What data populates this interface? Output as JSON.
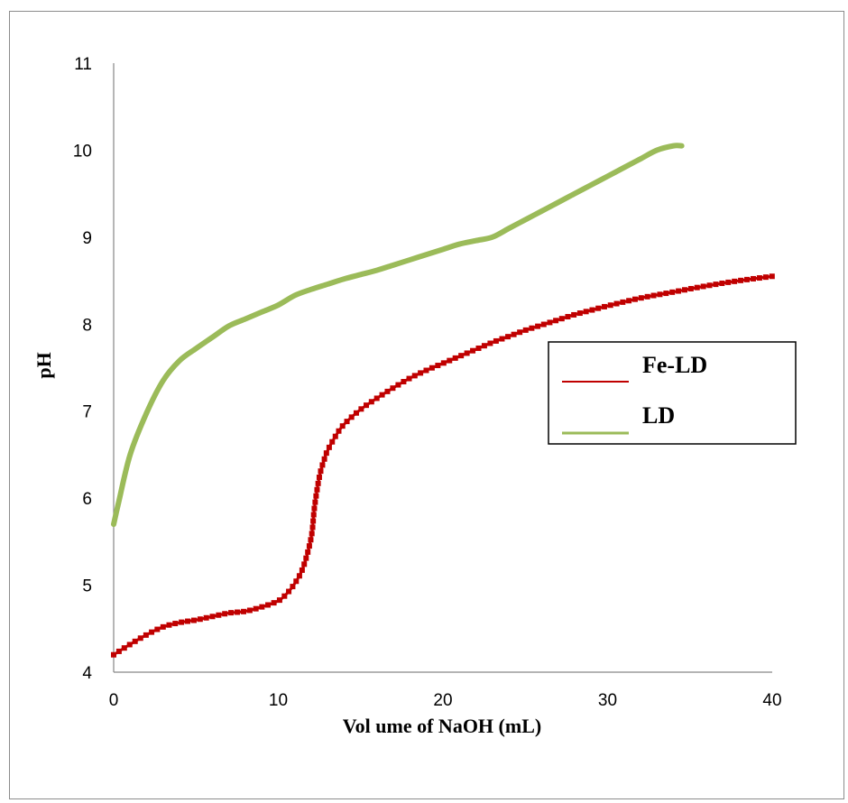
{
  "chart_data": {
    "type": "line",
    "xlabel": "Vol ume of NaOH (mL)",
    "ylabel": "pH",
    "xlim": [
      0,
      40
    ],
    "ylim": [
      4,
      11
    ],
    "xticks": [
      "0",
      "10",
      "20",
      "30",
      "40"
    ],
    "yticks": [
      "4",
      "5",
      "6",
      "7",
      "8",
      "9",
      "10",
      "11"
    ],
    "grid": false,
    "legend_position": "right",
    "series": [
      {
        "name": "Fe-LD",
        "color": "#c00000",
        "marker": "square",
        "x": [
          0,
          1,
          2,
          3,
          4,
          5,
          6,
          7,
          8,
          9,
          10,
          10.5,
          11,
          11.5,
          12,
          12.2,
          12.5,
          12.8,
          13,
          13.5,
          14,
          15,
          16,
          17,
          18,
          19,
          20,
          21,
          22,
          23,
          24,
          25,
          26,
          27,
          28,
          29,
          30,
          32,
          34,
          36,
          38,
          40
        ],
        "y": [
          4.2,
          4.32,
          4.43,
          4.52,
          4.57,
          4.6,
          4.64,
          4.68,
          4.7,
          4.75,
          4.82,
          4.9,
          5.02,
          5.2,
          5.55,
          5.9,
          6.25,
          6.45,
          6.55,
          6.72,
          6.85,
          7.02,
          7.15,
          7.27,
          7.38,
          7.47,
          7.55,
          7.63,
          7.71,
          7.79,
          7.86,
          7.93,
          7.99,
          8.05,
          8.11,
          8.16,
          8.21,
          8.3,
          8.37,
          8.44,
          8.5,
          8.55
        ]
      },
      {
        "name": "LD",
        "color": "#9bbb59",
        "marker": "none",
        "x": [
          0,
          0.3,
          1,
          2,
          3,
          4,
          5,
          6,
          7,
          8,
          9,
          10,
          11,
          12,
          13,
          14,
          15,
          16,
          17,
          18,
          19,
          20,
          21,
          22,
          23,
          24,
          25,
          26,
          27,
          28,
          29,
          30,
          31,
          32,
          33,
          34,
          34.5
        ],
        "y": [
          5.7,
          5.95,
          6.5,
          6.98,
          7.35,
          7.58,
          7.72,
          7.85,
          7.98,
          8.06,
          8.14,
          8.22,
          8.33,
          8.4,
          8.46,
          8.52,
          8.57,
          8.62,
          8.68,
          8.74,
          8.8,
          8.86,
          8.92,
          8.96,
          9.0,
          9.1,
          9.2,
          9.3,
          9.4,
          9.5,
          9.6,
          9.7,
          9.8,
          9.9,
          10.0,
          10.05,
          10.05
        ]
      }
    ]
  }
}
